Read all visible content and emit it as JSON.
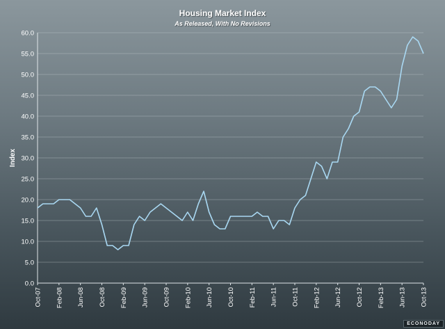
{
  "chart_data": {
    "type": "line",
    "title": "Housing Market Index",
    "subtitle": "As Released, With No Revisions",
    "xlabel": "",
    "ylabel": "Index",
    "ylim": [
      0,
      60
    ],
    "y_ticks": [
      "0.0",
      "5.0",
      "10.0",
      "15.0",
      "20.0",
      "25.0",
      "30.0",
      "35.0",
      "40.0",
      "45.0",
      "50.0",
      "55.0",
      "60.0"
    ],
    "x_tick_labels": [
      "Oct-07",
      "Feb-08",
      "Jun-08",
      "Oct-08",
      "Feb-09",
      "Jun-09",
      "Oct-09",
      "Feb-10",
      "Jun-10",
      "Oct-10",
      "Feb-11",
      "Jun-11",
      "Oct-11",
      "Feb-12",
      "Jun-12",
      "Oct-12",
      "Feb-13",
      "Jun-13",
      "Oct-13"
    ],
    "x_tick_months": [
      0,
      4,
      8,
      12,
      16,
      20,
      24,
      28,
      32,
      36,
      40,
      44,
      48,
      52,
      56,
      60,
      64,
      68,
      72
    ],
    "grid": true,
    "line_color": "#a9d8f2",
    "series": [
      {
        "name": "",
        "x_start": "Oct-07",
        "values": [
          18,
          19,
          19,
          19,
          20,
          20,
          20,
          19,
          18,
          16,
          16,
          18,
          14,
          9,
          9,
          8,
          9,
          9,
          14,
          16,
          15,
          17,
          18,
          19,
          18,
          17,
          16,
          15,
          17,
          15,
          19,
          22,
          17,
          14,
          13,
          13,
          16,
          16,
          16,
          16,
          16,
          17,
          16,
          16,
          13,
          15,
          15,
          14,
          18,
          20,
          21,
          25,
          29,
          28,
          25,
          29,
          29,
          35,
          37,
          40,
          41,
          46,
          47,
          47,
          46,
          44,
          42,
          44,
          52,
          57,
          59,
          58,
          55
        ]
      }
    ]
  },
  "branding": {
    "logo_text": "ECONODAY"
  }
}
